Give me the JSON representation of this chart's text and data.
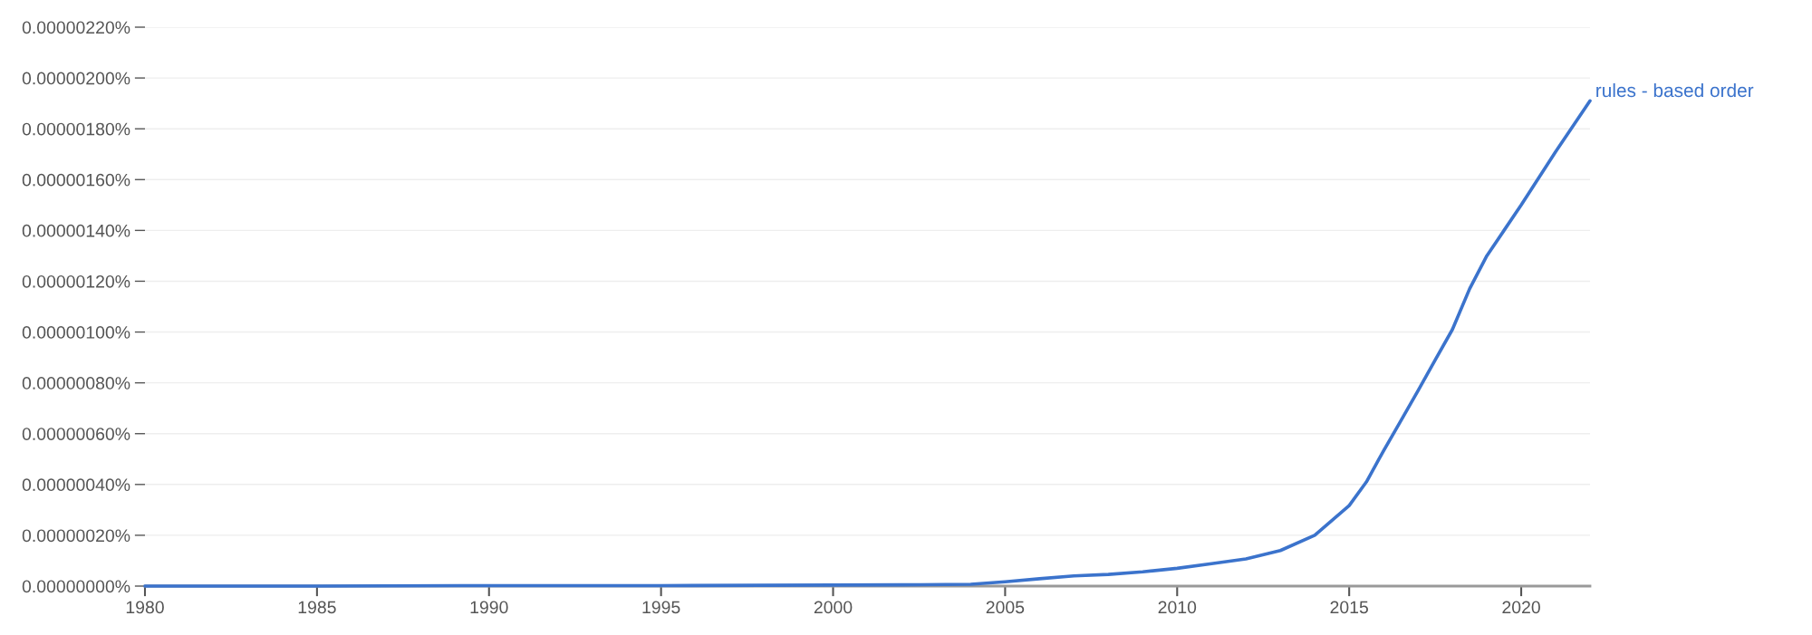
{
  "chart_data": {
    "type": "line",
    "x": [
      1980,
      1985,
      1990,
      1995,
      2000,
      2002,
      2004,
      2005,
      2006,
      2007,
      2008,
      2009,
      2010,
      2011,
      2012,
      2013,
      2014,
      2015,
      2015.5,
      2016,
      2016.5,
      2017,
      2017.5,
      2018,
      2018.5,
      2019,
      2019.5,
      2020,
      2021,
      2022
    ],
    "series": [
      {
        "name": "rules - based order",
        "color": "#3b73cc",
        "values": [
          0.0,
          0.0,
          2e-09,
          2e-09,
          4e-09,
          5e-09,
          7e-09,
          1.7e-08,
          2.9e-08,
          4e-08,
          4.6e-08,
          5.6e-08,
          7e-08,
          8.8e-08,
          1.07e-07,
          1.4e-07,
          2e-07,
          3.17e-07,
          4.1e-07,
          5.33e-07,
          6.5e-07,
          7.69e-07,
          8.9e-07,
          1.01e-06,
          1.17e-06,
          1.3e-06,
          1.4e-06,
          1.5e-06,
          1.71e-06,
          1.91e-06
        ]
      }
    ],
    "xlim": [
      1980,
      2022
    ],
    "xticks": [
      1980,
      1985,
      1990,
      1995,
      2000,
      2005,
      2010,
      2015,
      2020
    ],
    "ylim": [
      0,
      2.2e-06
    ],
    "yticks": [
      {
        "value": 0,
        "label": "0.00000000%"
      },
      {
        "value": 2e-07,
        "label": "0.00000020%"
      },
      {
        "value": 4e-07,
        "label": "0.00000040%"
      },
      {
        "value": 6e-07,
        "label": "0.00000060%"
      },
      {
        "value": 8e-07,
        "label": "0.00000080%"
      },
      {
        "value": 1e-06,
        "label": "0.00000100%"
      },
      {
        "value": 1.2e-06,
        "label": "0.00000120%"
      },
      {
        "value": 1.4e-06,
        "label": "0.00000140%"
      },
      {
        "value": 1.6e-06,
        "label": "0.00000160%"
      },
      {
        "value": 1.8e-06,
        "label": "0.00000180%"
      },
      {
        "value": 2e-06,
        "label": "0.00000200%"
      },
      {
        "value": 2.2e-06,
        "label": "0.00000220%"
      }
    ],
    "grid": "y",
    "marker": "none",
    "line_style": "solid",
    "legend": false
  }
}
